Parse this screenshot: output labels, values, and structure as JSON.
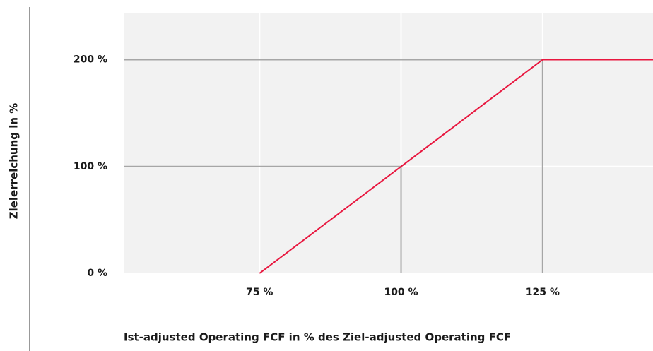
{
  "chart_data": {
    "type": "line",
    "x_label": "Ist-adjusted Operating FCF in % des Ziel-adjusted Operating FCF",
    "y_label": "Zielerreichung in %",
    "series": [
      {
        "color": "#e8173f",
        "x": [
          75,
          100,
          125,
          144.5
        ],
        "values": [
          0,
          100,
          200,
          200
        ]
      }
    ],
    "xlim": [
      51,
      144.5
    ],
    "ylim": [
      0,
      244
    ],
    "xticks": [
      {
        "value": 75,
        "label": "75 %"
      },
      {
        "value": 100,
        "label": "100 %"
      },
      {
        "value": 125,
        "label": "125 %"
      }
    ],
    "yticks": [
      {
        "value": 0,
        "label": "0 %"
      },
      {
        "value": 100,
        "label": "100 %"
      },
      {
        "value": 200,
        "label": "200 %"
      }
    ],
    "grid": true
  }
}
